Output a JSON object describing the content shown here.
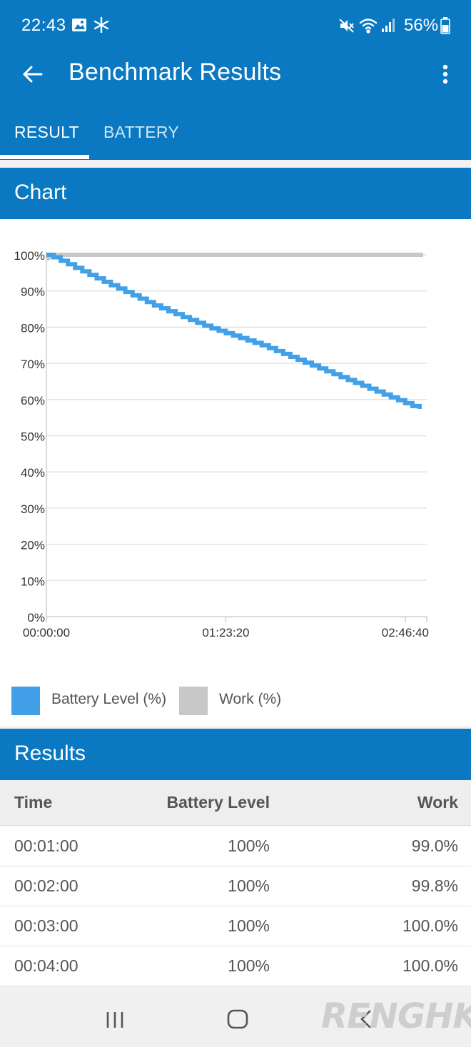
{
  "status": {
    "time": "22:43",
    "battery": "56%",
    "icons": [
      "gallery-icon",
      "snowflake-icon",
      "mute-icon",
      "wifi-icon",
      "signal-icon",
      "battery-icon"
    ]
  },
  "appbar": {
    "title": "Benchmark Results",
    "back_icon": "back-arrow-icon",
    "more_icon": "more-vert-icon"
  },
  "tabs": [
    {
      "label": "RESULT",
      "active": true
    },
    {
      "label": "BATTERY",
      "active": false
    }
  ],
  "chart_section": {
    "title": "Chart"
  },
  "chart_data": {
    "type": "line",
    "x_ticks": [
      "00:00:00",
      "01:23:20",
      "02:46:40"
    ],
    "x_tick_seconds": [
      0,
      5000,
      10000
    ],
    "y_ticks": [
      "100%",
      "90%",
      "80%",
      "70%",
      "60%",
      "50%",
      "40%",
      "30%",
      "20%",
      "10%",
      "0%"
    ],
    "ylim": [
      0,
      100
    ],
    "xlim": [
      0,
      10600
    ],
    "grid": true,
    "legend_position": "bottom-left",
    "series": [
      {
        "name": "Battery Level (%)",
        "color": "#42a0e8",
        "x_seconds": [
          0,
          60,
          1500,
          3000,
          4500,
          6000,
          7500,
          9000,
          10500
        ],
        "values": [
          100,
          100,
          93,
          86,
          80,
          75,
          69,
          63,
          57
        ]
      },
      {
        "name": "Work (%)",
        "color": "#c8c8c8",
        "x_seconds": [
          0,
          60,
          120,
          180,
          10500
        ],
        "values": [
          99.0,
          99.0,
          99.8,
          100.0,
          100.0
        ]
      }
    ]
  },
  "results_section": {
    "title": "Results"
  },
  "table": {
    "headers": [
      "Time",
      "Battery Level",
      "Work"
    ],
    "rows": [
      [
        "00:01:00",
        "100%",
        "99.0%"
      ],
      [
        "00:02:00",
        "100%",
        "99.8%"
      ],
      [
        "00:03:00",
        "100%",
        "100.0%"
      ],
      [
        "00:04:00",
        "100%",
        "100.0%"
      ]
    ]
  },
  "navbar": {
    "icons": [
      "recent-apps-icon",
      "home-icon",
      "back-icon"
    ]
  },
  "watermark": "RENGHK",
  "colors": {
    "primary": "#0a79c2",
    "battery": "#42a0e8",
    "work": "#c8c8c8"
  }
}
